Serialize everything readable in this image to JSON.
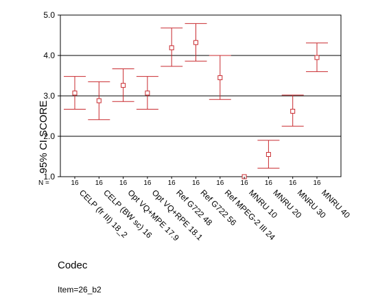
{
  "chart_data": {
    "type": "errorbar",
    "title": "",
    "xlabel": "Codec",
    "ylabel": "95% CI SCORE",
    "ylim": [
      1.0,
      5.0
    ],
    "yticks": [
      "1.0",
      "2.0",
      "3.0",
      "4.0",
      "5.0"
    ],
    "gridlines_y": [
      2.0,
      3.0,
      4.0
    ],
    "n_prefix": "N =",
    "categories": [
      "CELP (fr III) 18_2",
      "CELP (BW sc) 16",
      "Opt VQ+MPE 17.9",
      "Opt VQ+RPE 18.1",
      "Ref G722 48",
      "Ref G722 56",
      "Ref MPEG-2 III 24",
      "MNRU 10",
      "MNRU 20",
      "MNRU 30",
      "MNRU 40"
    ],
    "n": [
      "16",
      "16",
      "16",
      "16",
      "16",
      "16",
      "16",
      "16",
      "16",
      "16",
      "16"
    ],
    "mean": [
      3.07,
      2.88,
      3.26,
      3.07,
      4.19,
      4.32,
      3.45,
      1.0,
      1.55,
      2.62,
      3.95
    ],
    "lower": [
      2.67,
      2.41,
      2.86,
      2.67,
      3.73,
      3.86,
      2.91,
      1.0,
      1.21,
      2.25,
      3.6
    ],
    "upper": [
      3.48,
      3.35,
      3.67,
      3.48,
      4.68,
      4.79,
      4.0,
      1.0,
      1.9,
      3.02,
      4.31
    ],
    "color": "#c8282d",
    "footnote": "Item=26_b2"
  }
}
